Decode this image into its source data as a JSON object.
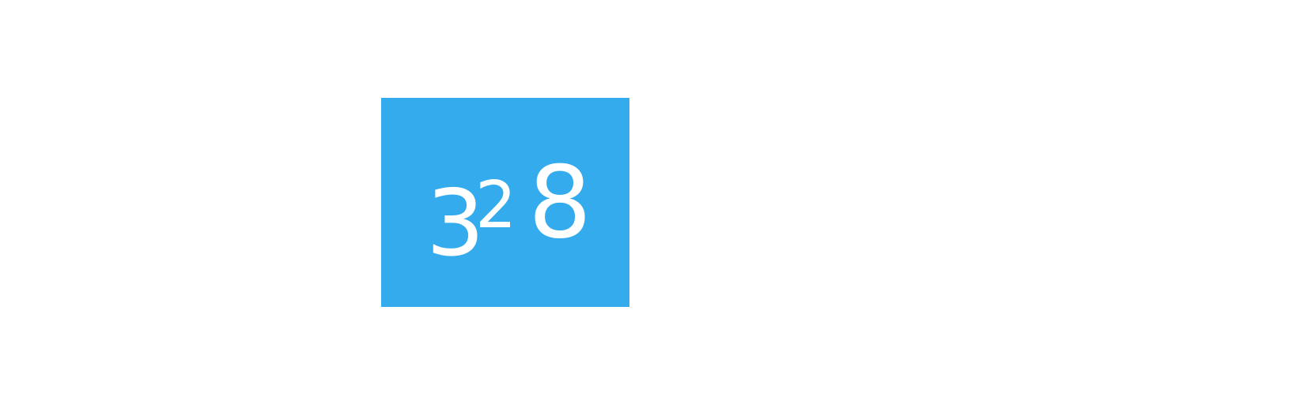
{
  "tile": {
    "color": "#33abed",
    "digits": [
      "3",
      "2",
      "8"
    ]
  }
}
